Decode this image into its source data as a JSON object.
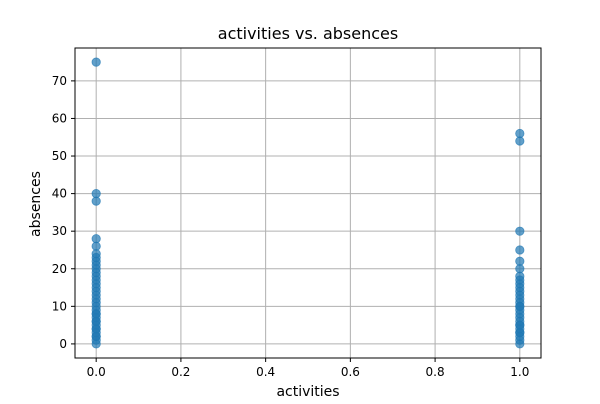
{
  "chart_data": {
    "type": "scatter",
    "title": "activities vs. absences",
    "xlabel": "activities",
    "ylabel": "absences",
    "xlim": [
      -0.05,
      1.05
    ],
    "ylim": [
      -3.75,
      78.75
    ],
    "x_ticks": [
      0.0,
      0.2,
      0.4,
      0.6,
      0.8,
      1.0
    ],
    "x_tick_labels": [
      "0.0",
      "0.2",
      "0.4",
      "0.6",
      "0.8",
      "1.0"
    ],
    "y_ticks": [
      0,
      10,
      20,
      30,
      40,
      50,
      60,
      70
    ],
    "y_tick_labels": [
      "0",
      "10",
      "20",
      "30",
      "40",
      "50",
      "60",
      "70"
    ],
    "grid": true,
    "legend": "none",
    "marker_color": "#1f77b4",
    "marker_alpha": 0.7,
    "points": {
      "x": [
        0,
        0,
        0,
        0,
        0,
        0,
        0,
        0,
        0,
        0,
        0,
        0,
        0,
        0,
        0,
        0,
        0,
        0,
        0,
        0,
        0,
        0,
        0,
        0,
        0,
        0,
        0,
        0,
        0,
        0,
        0,
        0,
        0,
        0,
        1,
        1,
        1,
        1,
        1,
        1,
        1,
        1,
        1,
        1,
        1,
        1,
        1,
        1,
        1,
        1,
        1,
        1,
        1,
        1,
        1,
        1,
        1,
        1,
        1,
        1,
        1,
        1
      ],
      "y": [
        0,
        1,
        2,
        3,
        4,
        5,
        6,
        7,
        8,
        9,
        10,
        11,
        12,
        13,
        14,
        15,
        16,
        17,
        18,
        19,
        20,
        21,
        22,
        23,
        24,
        26,
        28,
        38,
        40,
        75,
        2,
        4,
        6,
        8,
        0,
        1,
        2,
        3,
        4,
        5,
        6,
        7,
        8,
        9,
        10,
        11,
        12,
        13,
        14,
        15,
        16,
        17,
        18,
        20,
        22,
        25,
        30,
        54,
        56,
        3,
        5,
        10
      ]
    }
  }
}
